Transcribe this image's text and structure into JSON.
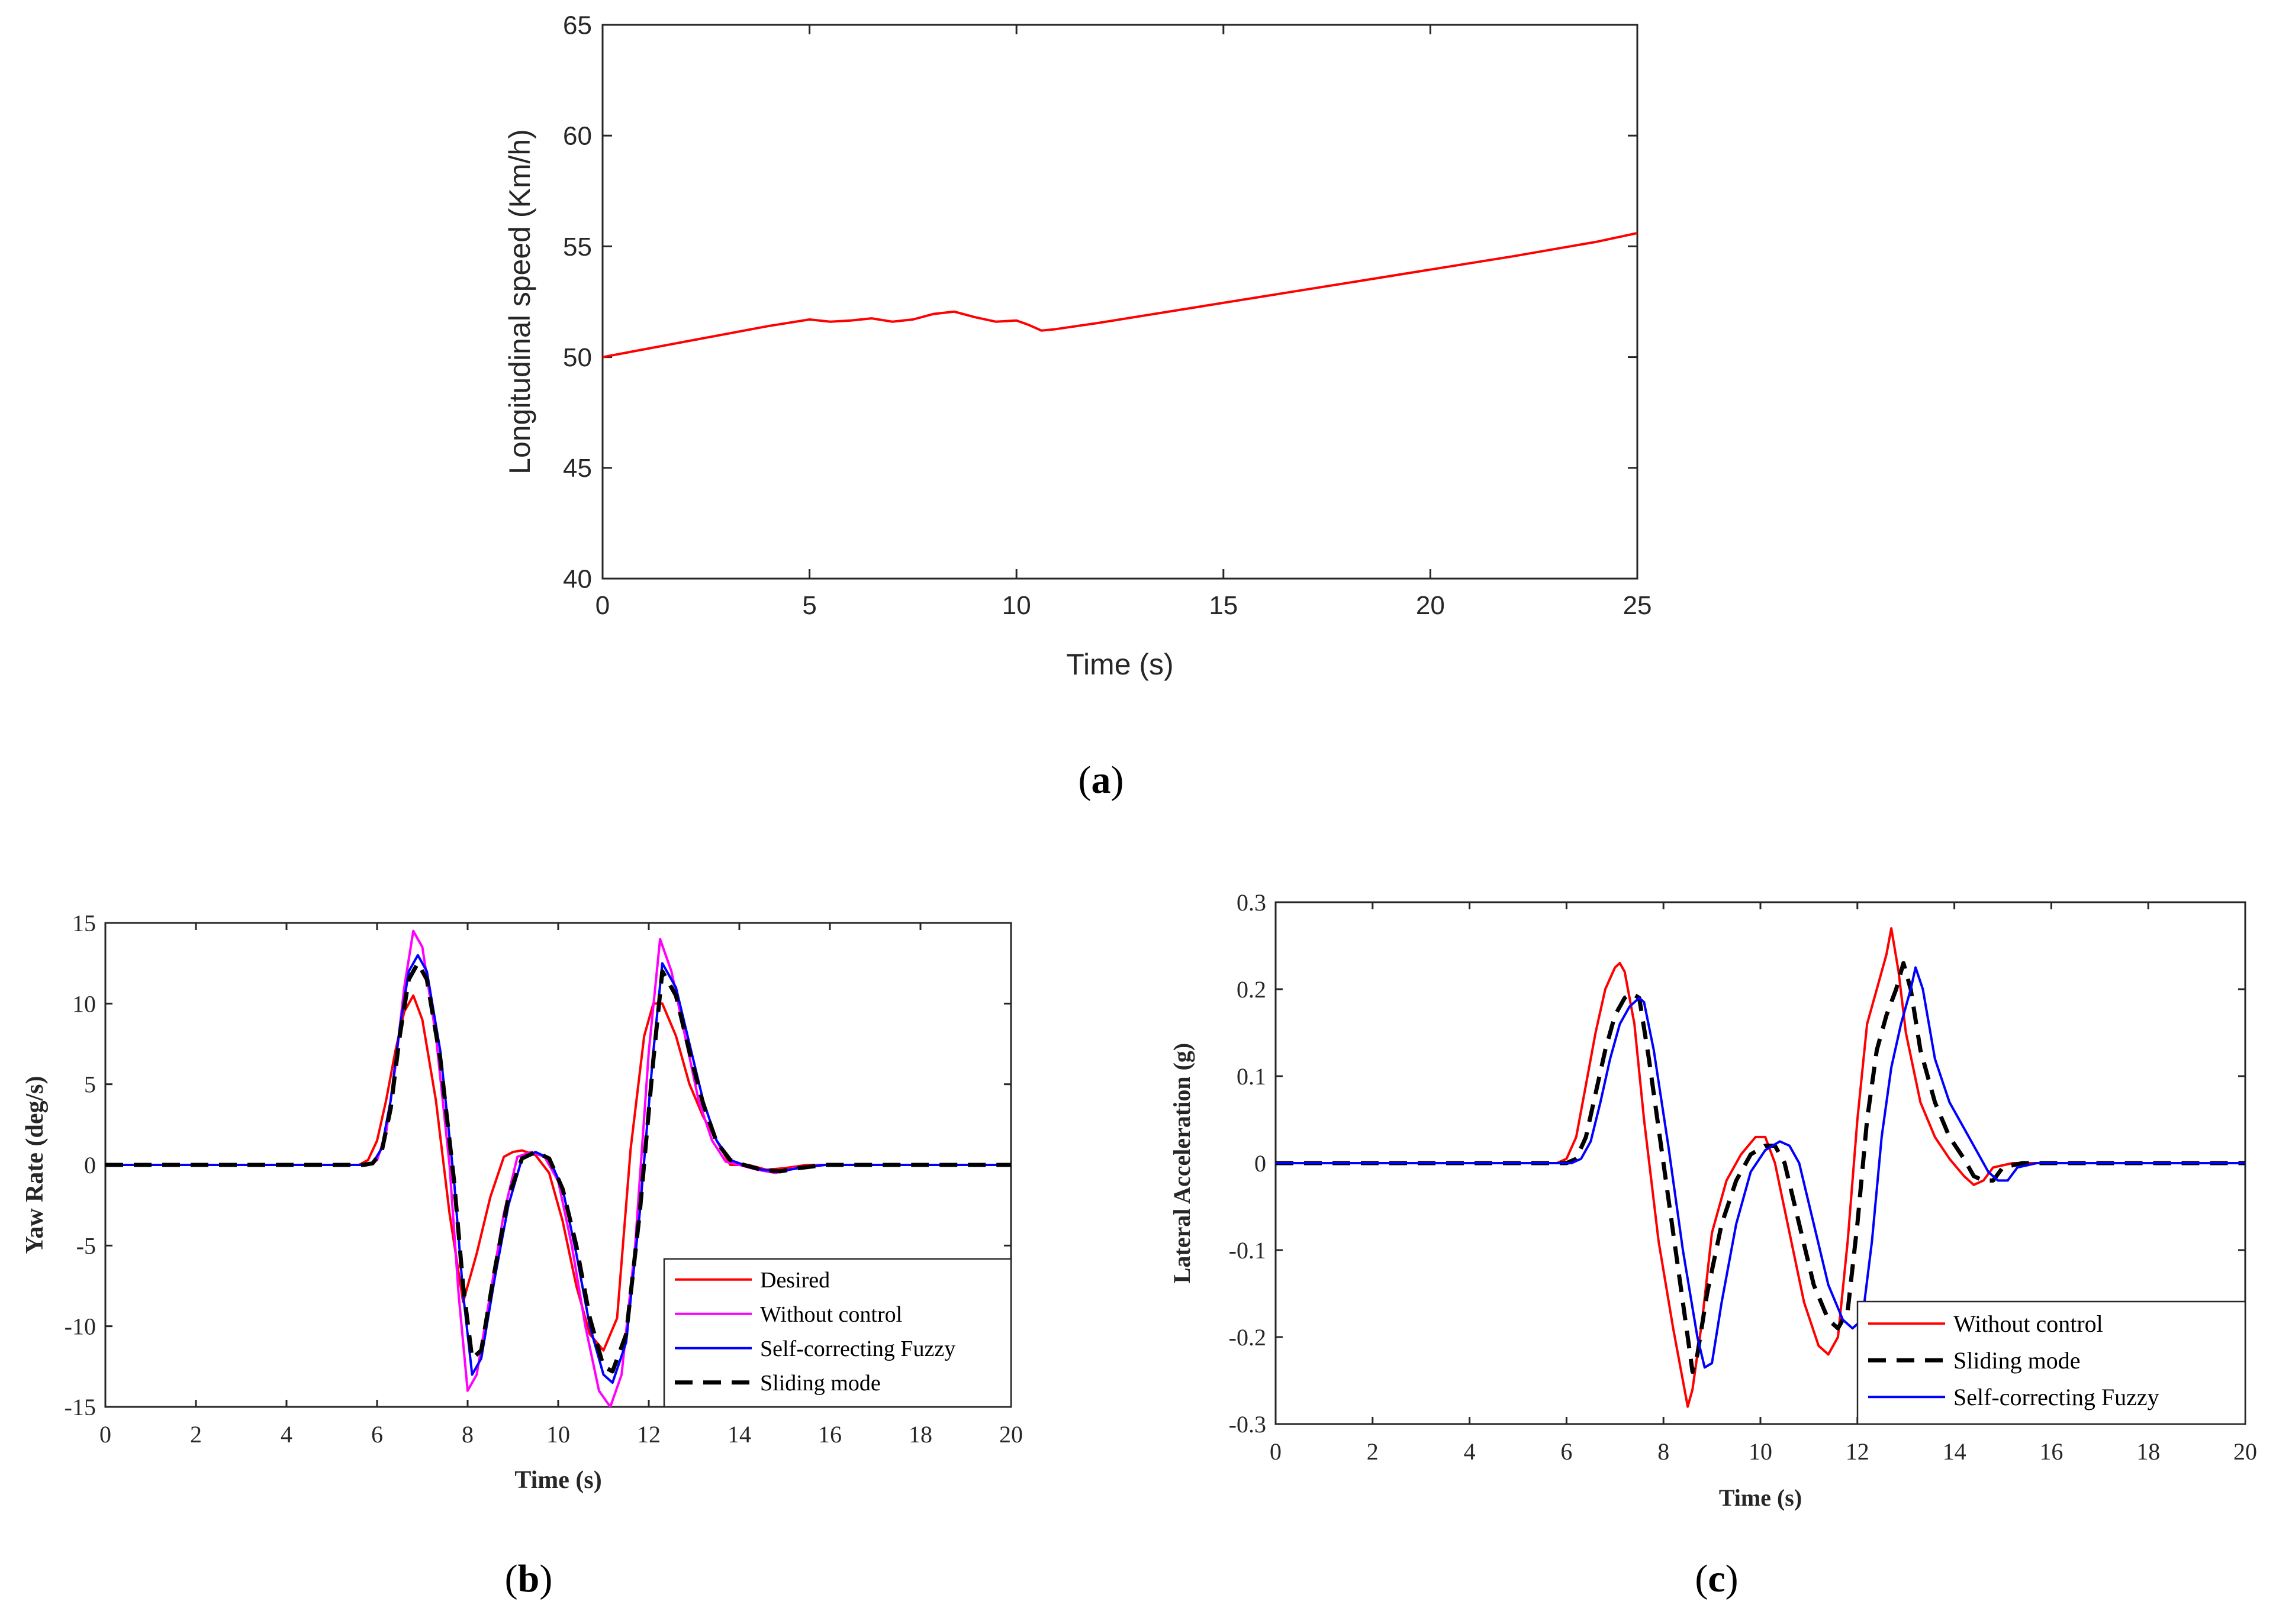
{
  "chart_data": [
    {
      "id": "a",
      "type": "line",
      "caption_letter": "a",
      "title": "",
      "xlabel": "Time (s)",
      "ylabel": "Longitudinal speed (Km/h)",
      "xlim": [
        0,
        25
      ],
      "ylim": [
        40,
        65
      ],
      "xticks": [
        "0",
        "5",
        "10",
        "15",
        "20",
        "25"
      ],
      "yticks": [
        "40",
        "45",
        "50",
        "55",
        "60",
        "65"
      ],
      "grid": false,
      "legend": "none",
      "series": [
        {
          "name": "Longitudinal speed",
          "color": "#ff0000",
          "x": [
            0,
            1,
            2,
            3,
            4,
            5,
            5.5,
            6,
            6.5,
            7,
            7.5,
            8,
            8.5,
            9,
            9.5,
            10,
            10.3,
            10.6,
            10.9,
            12,
            14,
            16,
            18,
            20,
            22,
            24,
            25
          ],
          "y": [
            50.0,
            50.35,
            50.7,
            51.05,
            51.4,
            51.7,
            51.6,
            51.65,
            51.75,
            51.6,
            51.7,
            51.95,
            52.05,
            51.8,
            51.6,
            51.65,
            51.45,
            51.2,
            51.25,
            51.55,
            52.15,
            52.75,
            53.35,
            53.95,
            54.55,
            55.2,
            55.6
          ]
        }
      ]
    },
    {
      "id": "b",
      "type": "line",
      "caption_letter": "b",
      "title": "",
      "xlabel": "Time (s)",
      "ylabel": "Yaw Rate (deg/s)",
      "xlim": [
        0,
        20
      ],
      "ylim": [
        -15,
        15
      ],
      "xticks": [
        "0",
        "2",
        "4",
        "6",
        "8",
        "10",
        "12",
        "14",
        "16",
        "18",
        "20"
      ],
      "yticks": [
        "-15",
        "-10",
        "-5",
        "0",
        "5",
        "10",
        "15"
      ],
      "grid": false,
      "legend": "bottom-right",
      "series": [
        {
          "name": "Desired",
          "color": "#ff0000",
          "style": "solid",
          "x": [
            0,
            5.6,
            5.8,
            6.0,
            6.2,
            6.4,
            6.6,
            6.8,
            7.0,
            7.3,
            7.6,
            7.9,
            8.2,
            8.5,
            8.8,
            9.0,
            9.2,
            9.5,
            9.8,
            10.1,
            10.4,
            10.7,
            11.0,
            11.3,
            11.6,
            11.9,
            12.1,
            12.3,
            12.6,
            12.9,
            13.2,
            13.5,
            13.8,
            14.2,
            14.6,
            15.0,
            15.5,
            20
          ],
          "y": [
            0,
            0,
            0.3,
            1.5,
            4,
            7,
            9.5,
            10.5,
            9,
            4,
            -3,
            -8.5,
            -5.5,
            -2,
            0.5,
            0.8,
            0.9,
            0.6,
            -0.5,
            -3.5,
            -7.5,
            -10.5,
            -11.5,
            -9.5,
            1,
            8,
            10,
            10,
            8,
            5,
            3,
            1.5,
            0,
            0,
            -0.3,
            -0.2,
            0,
            0
          ]
        },
        {
          "name": "Without control",
          "color": "#ff00ff",
          "style": "solid",
          "x": [
            0,
            5.6,
            5.8,
            6.0,
            6.2,
            6.4,
            6.6,
            6.8,
            7.0,
            7.3,
            7.6,
            7.8,
            8.0,
            8.2,
            8.5,
            8.8,
            9.1,
            9.4,
            9.7,
            10.0,
            10.3,
            10.6,
            10.9,
            11.15,
            11.4,
            11.7,
            12.0,
            12.25,
            12.5,
            12.8,
            13.1,
            13.4,
            13.7,
            14.0,
            14.4,
            14.8,
            15.2,
            15.8,
            20
          ],
          "y": [
            0,
            0,
            0,
            0.3,
            2,
            6,
            11,
            14.5,
            13.5,
            8,
            0,
            -8,
            -14,
            -13,
            -8,
            -3,
            0.5,
            0.8,
            0.5,
            -1,
            -5,
            -10,
            -14,
            -15,
            -13,
            -5,
            7,
            14,
            12,
            8,
            4,
            1.5,
            0.2,
            0,
            -0.3,
            -0.5,
            -0.2,
            0,
            0
          ]
        },
        {
          "name": "Self-correcting Fuzzy",
          "color": "#0000ff",
          "style": "solid",
          "x": [
            0,
            5.7,
            5.9,
            6.1,
            6.3,
            6.5,
            6.7,
            6.9,
            7.1,
            7.4,
            7.7,
            7.9,
            8.1,
            8.3,
            8.6,
            8.9,
            9.2,
            9.5,
            9.8,
            10.1,
            10.4,
            10.7,
            11.0,
            11.2,
            11.5,
            11.8,
            12.1,
            12.3,
            12.6,
            12.9,
            13.2,
            13.5,
            13.8,
            14.1,
            14.5,
            14.9,
            15.3,
            15.9,
            20
          ],
          "y": [
            0,
            0,
            0.1,
            1,
            4,
            8.5,
            12,
            13,
            12,
            7,
            -1,
            -8,
            -13,
            -12,
            -7,
            -2.5,
            0.4,
            0.8,
            0.4,
            -1.5,
            -5.5,
            -10,
            -13,
            -13.5,
            -11,
            -3,
            7,
            12.5,
            11,
            7.5,
            4,
            1.5,
            0.3,
            0,
            -0.3,
            -0.4,
            -0.2,
            0,
            0
          ]
        },
        {
          "name": "Sliding mode",
          "color": "#000000",
          "style": "dashed",
          "x": [
            0,
            5.7,
            5.9,
            6.1,
            6.3,
            6.5,
            6.7,
            6.9,
            7.1,
            7.4,
            7.7,
            7.9,
            8.1,
            8.3,
            8.6,
            8.9,
            9.2,
            9.5,
            9.8,
            10.1,
            10.4,
            10.7,
            11.0,
            11.2,
            11.5,
            11.8,
            12.1,
            12.3,
            12.6,
            12.9,
            13.2,
            13.5,
            13.8,
            14.1,
            14.5,
            14.9,
            15.3,
            15.9,
            20
          ],
          "y": [
            0,
            0,
            0.1,
            0.8,
            3.5,
            8,
            11.5,
            12.5,
            11.5,
            6.5,
            -1,
            -7.5,
            -12,
            -11.5,
            -6.5,
            -2,
            0.4,
            0.8,
            0.4,
            -1.5,
            -5,
            -9.5,
            -12.5,
            -12.8,
            -10.5,
            -3,
            6.5,
            12,
            10.5,
            7,
            3.8,
            1.4,
            0.3,
            0,
            -0.3,
            -0.4,
            -0.2,
            0,
            0
          ]
        }
      ]
    },
    {
      "id": "c",
      "type": "line",
      "caption_letter": "c",
      "title": "",
      "xlabel": "Time (s)",
      "ylabel": "Lateral Acceleration (g)",
      "xlim": [
        0,
        20
      ],
      "ylim": [
        -0.3,
        0.3
      ],
      "xticks": [
        "0",
        "2",
        "4",
        "6",
        "8",
        "10",
        "12",
        "14",
        "16",
        "18",
        "20"
      ],
      "yticks": [
        "-0.3",
        "-0.2",
        "-0.1",
        "0",
        "0.1",
        "0.2",
        "0.3"
      ],
      "grid": false,
      "legend": "bottom-right",
      "series": [
        {
          "name": "Without control",
          "color": "#ff0000",
          "style": "solid",
          "x": [
            0,
            5.8,
            6.0,
            6.2,
            6.4,
            6.6,
            6.8,
            7.0,
            7.1,
            7.2,
            7.4,
            7.6,
            7.9,
            8.2,
            8.4,
            8.5,
            8.6,
            8.8,
            9.0,
            9.3,
            9.6,
            9.9,
            10.1,
            10.3,
            10.6,
            10.9,
            11.2,
            11.4,
            11.6,
            11.8,
            12.0,
            12.2,
            12.4,
            12.6,
            12.7,
            12.85,
            13.0,
            13.3,
            13.6,
            13.9,
            14.2,
            14.4,
            14.6,
            14.8,
            15.2,
            16,
            20
          ],
          "y": [
            0,
            0,
            0.005,
            0.03,
            0.09,
            0.15,
            0.2,
            0.225,
            0.23,
            0.22,
            0.16,
            0.05,
            -0.09,
            -0.19,
            -0.25,
            -0.28,
            -0.26,
            -0.18,
            -0.08,
            -0.02,
            0.01,
            0.03,
            0.03,
            0.0,
            -0.08,
            -0.16,
            -0.21,
            -0.22,
            -0.2,
            -0.09,
            0.05,
            0.16,
            0.2,
            0.24,
            0.27,
            0.22,
            0.15,
            0.07,
            0.03,
            0.005,
            -0.015,
            -0.025,
            -0.02,
            -0.005,
            0,
            0,
            0
          ]
        },
        {
          "name": "Sliding mode",
          "color": "#000000",
          "style": "dashed",
          "x": [
            0,
            6.0,
            6.2,
            6.4,
            6.6,
            6.8,
            7.0,
            7.2,
            7.35,
            7.5,
            7.7,
            8.0,
            8.3,
            8.5,
            8.6,
            8.7,
            8.9,
            9.2,
            9.5,
            9.8,
            10.1,
            10.3,
            10.5,
            10.8,
            11.1,
            11.4,
            11.6,
            11.8,
            12.0,
            12.2,
            12.4,
            12.6,
            12.8,
            12.95,
            13.1,
            13.3,
            13.6,
            13.9,
            14.2,
            14.4,
            14.6,
            14.8,
            15.0,
            15.4,
            16,
            20
          ],
          "y": [
            0,
            0,
            0.005,
            0.03,
            0.08,
            0.13,
            0.17,
            0.19,
            0.195,
            0.19,
            0.12,
            0.0,
            -0.12,
            -0.2,
            -0.24,
            -0.22,
            -0.15,
            -0.07,
            -0.02,
            0.01,
            0.02,
            0.02,
            0.0,
            -0.07,
            -0.14,
            -0.18,
            -0.19,
            -0.17,
            -0.07,
            0.05,
            0.13,
            0.17,
            0.2,
            0.23,
            0.2,
            0.13,
            0.07,
            0.03,
            0.005,
            -0.015,
            -0.02,
            -0.02,
            -0.005,
            0,
            0,
            0
          ]
        },
        {
          "name": "Self-correcting Fuzzy",
          "color": "#0000ff",
          "style": "solid",
          "x": [
            0,
            6.1,
            6.3,
            6.5,
            6.7,
            6.9,
            7.1,
            7.3,
            7.5,
            7.6,
            7.8,
            8.1,
            8.4,
            8.7,
            8.85,
            9.0,
            9.2,
            9.5,
            9.8,
            10.1,
            10.4,
            10.6,
            10.8,
            11.1,
            11.4,
            11.7,
            11.9,
            12.1,
            12.3,
            12.5,
            12.7,
            12.9,
            13.1,
            13.2,
            13.35,
            13.6,
            13.9,
            14.2,
            14.5,
            14.7,
            14.9,
            15.1,
            15.3,
            15.7,
            16.2,
            20
          ],
          "y": [
            0,
            0,
            0.005,
            0.025,
            0.07,
            0.12,
            0.16,
            0.18,
            0.19,
            0.185,
            0.13,
            0.02,
            -0.1,
            -0.2,
            -0.235,
            -0.23,
            -0.16,
            -0.07,
            -0.01,
            0.015,
            0.025,
            0.02,
            0.0,
            -0.07,
            -0.14,
            -0.18,
            -0.19,
            -0.18,
            -0.09,
            0.03,
            0.11,
            0.16,
            0.2,
            0.225,
            0.2,
            0.12,
            0.07,
            0.04,
            0.01,
            -0.01,
            -0.02,
            -0.02,
            -0.005,
            0,
            0,
            0
          ]
        }
      ]
    }
  ]
}
